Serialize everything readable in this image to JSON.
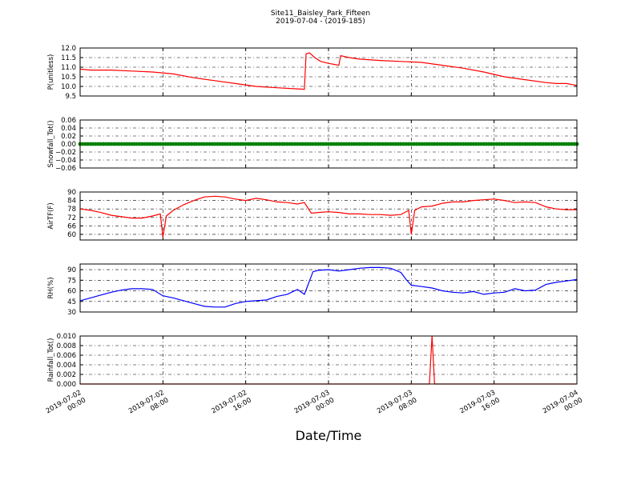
{
  "title": "Site11_Baisley_Park_Fifteen",
  "subtitle": "2019-07-04 - (2019-185)",
  "xlabel": "Date/Time",
  "x_tick_labels": [
    [
      "2019-07-02",
      "00:00"
    ],
    [
      "2019-07-02",
      "08:00"
    ],
    [
      "2019-07-02",
      "16:00"
    ],
    [
      "2019-07-03",
      "00:00"
    ],
    [
      "2019-07-03",
      "08:00"
    ],
    [
      "2019-07-03",
      "16:00"
    ],
    [
      "2019-07-04",
      "00:00"
    ]
  ],
  "chart_data": [
    {
      "type": "line",
      "ylabel": "P(unitless)",
      "ylim": [
        9.5,
        12.0
      ],
      "yticks": [
        9.5,
        10.0,
        10.5,
        11.0,
        11.5,
        12.0
      ],
      "ytick_labels": [
        "9.5",
        "10.0",
        "10.5",
        "11.0",
        "11.5",
        "12.0"
      ],
      "xlim": [
        "2019-07-02 00:00",
        "2019-07-04 00:00"
      ],
      "grid": true,
      "series": [
        {
          "color": "#ff0000",
          "points": [
            [
              "2019-07-02 00:00",
              10.9
            ],
            [
              "2019-07-02 01:00",
              10.85
            ],
            [
              "2019-07-02 03:00",
              10.85
            ],
            [
              "2019-07-02 05:00",
              10.8
            ],
            [
              "2019-07-02 07:00",
              10.75
            ],
            [
              "2019-07-02 09:00",
              10.65
            ],
            [
              "2019-07-02 11:00",
              10.45
            ],
            [
              "2019-07-02 13:00",
              10.3
            ],
            [
              "2019-07-02 15:00",
              10.15
            ],
            [
              "2019-07-02 17:00",
              10.0
            ],
            [
              "2019-07-02 19:00",
              9.93
            ],
            [
              "2019-07-02 21:00",
              9.87
            ],
            [
              "2019-07-02 21:40",
              9.85
            ],
            [
              "2019-07-02 21:50",
              11.7
            ],
            [
              "2019-07-02 22:10",
              11.75
            ],
            [
              "2019-07-02 22:40",
              11.5
            ],
            [
              "2019-07-02 23:15",
              11.3
            ],
            [
              "2019-07-03 00:00",
              11.2
            ],
            [
              "2019-07-03 00:30",
              11.15
            ],
            [
              "2019-07-03 01:00",
              11.1
            ],
            [
              "2019-07-03 01:10",
              11.6
            ],
            [
              "2019-07-03 02:00",
              11.5
            ],
            [
              "2019-07-03 03:00",
              11.42
            ],
            [
              "2019-07-03 05:00",
              11.35
            ],
            [
              "2019-07-03 07:00",
              11.3
            ],
            [
              "2019-07-03 09:00",
              11.25
            ],
            [
              "2019-07-03 11:00",
              11.1
            ],
            [
              "2019-07-03 13:00",
              10.95
            ],
            [
              "2019-07-03 15:00",
              10.75
            ],
            [
              "2019-07-03 17:00",
              10.5
            ],
            [
              "2019-07-03 19:00",
              10.35
            ],
            [
              "2019-07-03 21:00",
              10.2
            ],
            [
              "2019-07-03 22:00",
              10.15
            ],
            [
              "2019-07-03 23:00",
              10.15
            ],
            [
              "2019-07-04 00:00",
              10.05
            ]
          ]
        }
      ]
    },
    {
      "type": "scatter",
      "ylabel": "Snowfall_Tot()",
      "ylim": [
        -0.06,
        0.06
      ],
      "yticks": [
        -0.06,
        -0.04,
        -0.02,
        0.0,
        0.02,
        0.04,
        0.06
      ],
      "ytick_labels": [
        "−0.06",
        "−0.04",
        "−0.02",
        "0.00",
        "0.02",
        "0.04",
        "0.06"
      ],
      "xlim": [
        "2019-07-02 00:00",
        "2019-07-04 00:00"
      ],
      "grid": true,
      "series": [
        {
          "color": "#008000",
          "constant": 0.0,
          "interval_minutes": 15
        }
      ]
    },
    {
      "type": "line",
      "ylabel": "AirTF(F)",
      "ylim": [
        56,
        90
      ],
      "yticks": [
        60,
        66,
        72,
        78,
        84,
        90
      ],
      "ytick_labels": [
        "60",
        "66",
        "72",
        "78",
        "84",
        "90"
      ],
      "xlim": [
        "2019-07-02 00:00",
        "2019-07-04 00:00"
      ],
      "grid": true,
      "series": [
        {
          "color": "#ff0000",
          "points": [
            [
              "2019-07-02 00:00",
              78
            ],
            [
              "2019-07-02 01:00",
              77
            ],
            [
              "2019-07-02 02:00",
              75.5
            ],
            [
              "2019-07-02 03:00",
              73.5
            ],
            [
              "2019-07-02 04:00",
              72.5
            ],
            [
              "2019-07-02 05:00",
              71.5
            ],
            [
              "2019-07-02 06:00",
              71.5
            ],
            [
              "2019-07-02 07:00",
              73
            ],
            [
              "2019-07-02 07:45",
              74.5
            ],
            [
              "2019-07-02 08:00",
              58
            ],
            [
              "2019-07-02 08:20",
              73
            ],
            [
              "2019-07-02 09:00",
              77
            ],
            [
              "2019-07-02 10:00",
              81
            ],
            [
              "2019-07-02 11:00",
              84
            ],
            [
              "2019-07-02 12:00",
              86.5
            ],
            [
              "2019-07-02 13:00",
              87
            ],
            [
              "2019-07-02 14:00",
              86.5
            ],
            [
              "2019-07-02 15:00",
              85
            ],
            [
              "2019-07-02 16:00",
              84
            ],
            [
              "2019-07-02 17:00",
              85.5
            ],
            [
              "2019-07-02 18:00",
              84.5
            ],
            [
              "2019-07-02 19:00",
              83
            ],
            [
              "2019-07-02 20:00",
              82.5
            ],
            [
              "2019-07-02 21:00",
              81.5
            ],
            [
              "2019-07-02 21:40",
              82.5
            ],
            [
              "2019-07-02 22:20",
              75
            ],
            [
              "2019-07-02 23:00",
              75.5
            ],
            [
              "2019-07-03 00:00",
              76
            ],
            [
              "2019-07-03 01:00",
              75.5
            ],
            [
              "2019-07-03 02:00",
              74.5
            ],
            [
              "2019-07-03 03:00",
              74.5
            ],
            [
              "2019-07-03 04:00",
              74
            ],
            [
              "2019-07-03 05:00",
              74
            ],
            [
              "2019-07-03 06:00",
              73.5
            ],
            [
              "2019-07-03 07:00",
              74
            ],
            [
              "2019-07-03 07:45",
              77
            ],
            [
              "2019-07-03 08:00",
              60
            ],
            [
              "2019-07-03 08:20",
              77
            ],
            [
              "2019-07-03 09:00",
              79.5
            ],
            [
              "2019-07-03 10:00",
              80
            ],
            [
              "2019-07-03 11:00",
              82
            ],
            [
              "2019-07-03 12:00",
              83
            ],
            [
              "2019-07-03 13:00",
              83
            ],
            [
              "2019-07-03 14:00",
              84
            ],
            [
              "2019-07-03 15:00",
              84.5
            ],
            [
              "2019-07-03 16:00",
              85
            ],
            [
              "2019-07-03 17:00",
              84
            ],
            [
              "2019-07-03 18:00",
              82.5
            ],
            [
              "2019-07-03 19:00",
              83
            ],
            [
              "2019-07-03 20:00",
              82.5
            ],
            [
              "2019-07-03 21:00",
              79.5
            ],
            [
              "2019-07-03 22:00",
              78
            ],
            [
              "2019-07-03 23:00",
              77.5
            ],
            [
              "2019-07-04 00:00",
              77.5
            ]
          ]
        }
      ]
    },
    {
      "type": "line",
      "ylabel": "RH(%)",
      "ylim": [
        30,
        98
      ],
      "yticks": [
        30,
        45,
        60,
        75,
        90
      ],
      "ytick_labels": [
        "30",
        "45",
        "60",
        "75",
        "90"
      ],
      "xlim": [
        "2019-07-02 00:00",
        "2019-07-04 00:00"
      ],
      "grid": true,
      "series": [
        {
          "color": "#0000ff",
          "points": [
            [
              "2019-07-02 00:00",
              46
            ],
            [
              "2019-07-02 01:00",
              50
            ],
            [
              "2019-07-02 02:00",
              54
            ],
            [
              "2019-07-02 03:00",
              58
            ],
            [
              "2019-07-02 04:00",
              61
            ],
            [
              "2019-07-02 05:00",
              63
            ],
            [
              "2019-07-02 06:00",
              63
            ],
            [
              "2019-07-02 07:00",
              62
            ],
            [
              "2019-07-02 08:00",
              53
            ],
            [
              "2019-07-02 09:00",
              50
            ],
            [
              "2019-07-02 10:00",
              46
            ],
            [
              "2019-07-02 11:00",
              42
            ],
            [
              "2019-07-02 12:00",
              38
            ],
            [
              "2019-07-02 13:00",
              37
            ],
            [
              "2019-07-02 14:00",
              37
            ],
            [
              "2019-07-02 15:00",
              42
            ],
            [
              "2019-07-02 16:00",
              45
            ],
            [
              "2019-07-02 17:00",
              46
            ],
            [
              "2019-07-02 18:00",
              47
            ],
            [
              "2019-07-02 19:00",
              52
            ],
            [
              "2019-07-02 20:00",
              55
            ],
            [
              "2019-07-02 21:00",
              62
            ],
            [
              "2019-07-02 21:40",
              55
            ],
            [
              "2019-07-02 22:30",
              87
            ],
            [
              "2019-07-02 23:00",
              89
            ],
            [
              "2019-07-03 00:00",
              90
            ],
            [
              "2019-07-03 01:00",
              88
            ],
            [
              "2019-07-03 02:00",
              90
            ],
            [
              "2019-07-03 03:00",
              92
            ],
            [
              "2019-07-03 04:00",
              93
            ],
            [
              "2019-07-03 05:00",
              93
            ],
            [
              "2019-07-03 06:00",
              92
            ],
            [
              "2019-07-03 07:00",
              86
            ],
            [
              "2019-07-03 07:30",
              76
            ],
            [
              "2019-07-03 08:00",
              68
            ],
            [
              "2019-07-03 09:00",
              66
            ],
            [
              "2019-07-03 10:00",
              64
            ],
            [
              "2019-07-03 11:00",
              60
            ],
            [
              "2019-07-03 12:00",
              58
            ],
            [
              "2019-07-03 13:00",
              57
            ],
            [
              "2019-07-03 14:00",
              59
            ],
            [
              "2019-07-03 15:00",
              55
            ],
            [
              "2019-07-03 16:00",
              57
            ],
            [
              "2019-07-03 17:00",
              58
            ],
            [
              "2019-07-03 18:00",
              63
            ],
            [
              "2019-07-03 19:00",
              60
            ],
            [
              "2019-07-03 20:00",
              61
            ],
            [
              "2019-07-03 21:00",
              69
            ],
            [
              "2019-07-03 22:00",
              72
            ],
            [
              "2019-07-03 23:00",
              74
            ],
            [
              "2019-07-04 00:00",
              76
            ]
          ]
        }
      ]
    },
    {
      "type": "line",
      "ylabel": "Rainfall_Tot()",
      "ylim": [
        0,
        0.01
      ],
      "yticks": [
        0.0,
        0.002,
        0.004,
        0.006,
        0.008,
        0.01
      ],
      "ytick_labels": [
        "0.000",
        "0.002",
        "0.004",
        "0.006",
        "0.008",
        "0.010"
      ],
      "xlim": [
        "2019-07-02 00:00",
        "2019-07-04 00:00"
      ],
      "grid": true,
      "series": [
        {
          "color": "#ff0000",
          "points": [
            [
              "2019-07-02 00:00",
              0.0
            ],
            [
              "2019-07-03 09:45",
              0.0
            ],
            [
              "2019-07-03 10:00",
              0.01
            ],
            [
              "2019-07-03 10:15",
              0.0
            ],
            [
              "2019-07-04 00:00",
              0.0
            ]
          ]
        }
      ]
    }
  ]
}
